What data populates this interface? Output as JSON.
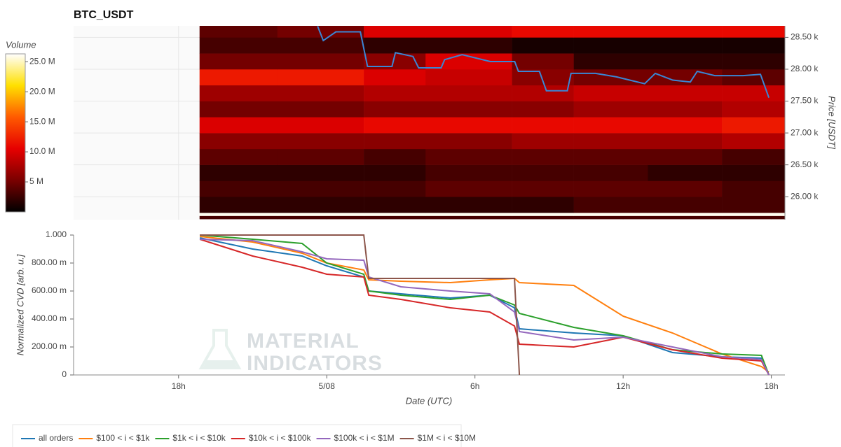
{
  "chart_data": [
    {
      "type": "heatmap",
      "title": "BTC_USDT",
      "ylabel": "Price [USDT]",
      "xlim": [
        -10.25,
        18.55
      ],
      "ylim": [
        25640,
        28680
      ],
      "yticks": [
        {
          "value": 26000,
          "label": "26.00 k"
        },
        {
          "value": 26500,
          "label": "26.50 k"
        },
        {
          "value": 27000,
          "label": "27.00 k"
        },
        {
          "value": 27500,
          "label": "27.50 k"
        },
        {
          "value": 28000,
          "label": "28.00 k"
        },
        {
          "value": 28500,
          "label": "28.50 k"
        }
      ],
      "grid": true,
      "colorbar_title": "Volume",
      "colorscale": [
        "#000000",
        "#7a0000",
        "#e60000",
        "#ff5a00",
        "#ffe000",
        "#ffffff"
      ],
      "clim": [
        0,
        26.3
      ],
      "cticks": [
        {
          "value": 5,
          "label": "5 M"
        },
        {
          "value": 10,
          "label": "10.0 M"
        },
        {
          "value": 15,
          "label": "15.0 M"
        },
        {
          "value": 20,
          "label": "20.0 M"
        },
        {
          "value": 25,
          "label": "25.0 M"
        }
      ],
      "x_bins": [
        -5.15,
        -2,
        1.5,
        4,
        7.5,
        10,
        13,
        16,
        18.55
      ],
      "y_bins": [
        25650,
        25700,
        25750,
        26000,
        26250,
        26500,
        26750,
        27000,
        27250,
        27500,
        27750,
        28000,
        28250,
        28500,
        28680
      ],
      "z": [
        [
          3,
          3,
          3,
          3,
          3,
          3,
          3,
          3
        ],
        [
          26,
          26,
          26,
          26,
          26,
          26,
          26,
          26
        ],
        [
          2,
          2,
          2,
          2,
          2,
          3,
          3,
          3
        ],
        [
          3,
          3,
          3,
          4,
          4,
          4,
          4,
          3
        ],
        [
          2,
          2,
          2,
          3,
          3,
          3,
          2,
          2
        ],
        [
          4,
          4,
          3,
          4,
          4,
          4,
          4,
          3
        ],
        [
          6,
          6,
          6,
          6,
          7,
          7,
          7,
          8
        ],
        [
          10,
          10,
          11,
          11,
          11,
          11,
          11,
          12
        ],
        [
          5,
          5,
          6,
          6,
          6,
          7,
          7,
          8
        ],
        [
          7,
          7,
          8,
          8,
          8,
          9,
          9,
          9
        ],
        [
          12,
          12,
          10,
          9,
          6,
          5,
          5,
          4
        ],
        [
          5,
          5,
          6,
          10,
          5,
          2,
          2,
          2
        ],
        [
          3,
          3,
          2,
          2,
          1,
          1,
          1,
          1
        ],
        [
          4,
          5,
          10,
          10,
          11,
          11,
          11,
          11
        ]
      ],
      "series": [
        {
          "name": "Price",
          "color": "#3a86d4",
          "x": [
            -0.37,
            -0.14,
            0.37,
            1.36,
            1.65,
            2.64,
            2.78,
            3.49,
            3.72,
            4.63,
            4.77,
            5.48,
            6.62,
            7.61,
            7.76,
            8.61,
            8.89,
            9.74,
            9.89,
            10.88,
            11.73,
            12.87,
            13.3,
            14.01,
            14.72,
            15.0,
            15.71,
            16.85,
            17.56,
            17.9
          ],
          "values": [
            28674,
            28450,
            28587,
            28587,
            28043,
            28043,
            28260,
            28200,
            28022,
            28022,
            28150,
            28228,
            28120,
            28120,
            27967,
            27967,
            27663,
            27663,
            27935,
            27935,
            27880,
            27772,
            27935,
            27830,
            27800,
            27967,
            27900,
            27900,
            27920,
            27554
          ]
        }
      ]
    },
    {
      "type": "line",
      "ylabel": "Normalized CVD [arb. u.]",
      "xlabel": "Date (UTC)",
      "xlim": [
        -10.25,
        18.55
      ],
      "ylim": [
        0,
        1
      ],
      "xticks": [
        {
          "value": -6,
          "label": "18h"
        },
        {
          "value": 0,
          "label": "5/08"
        },
        {
          "value": 6,
          "label": "6h"
        },
        {
          "value": 12,
          "label": "12h"
        },
        {
          "value": 18,
          "label": "18h"
        }
      ],
      "yticks": [
        0,
        {
          "value": 0.2,
          "label": "200.00 m"
        },
        {
          "value": 0.4,
          "label": "400.00 m"
        },
        {
          "value": 0.6,
          "label": "600.00 m"
        },
        {
          "value": 0.8,
          "label": "800.00 m"
        },
        {
          "value": 1,
          "label": "1.000"
        }
      ],
      "legend": "bottom",
      "watermark": [
        "MATERIAL",
        "INDICATORS"
      ],
      "x": [
        -5.14,
        -3,
        -1,
        0,
        1.5,
        1.7,
        3,
        5,
        6.6,
        7.6,
        7.8,
        10,
        12,
        14,
        16,
        17.6,
        17.9
      ],
      "series": [
        {
          "name": "all orders",
          "color": "#1f77b4",
          "values": [
            0.98,
            0.9,
            0.85,
            0.78,
            0.7,
            0.6,
            0.58,
            0.55,
            0.57,
            0.48,
            0.33,
            0.3,
            0.28,
            0.16,
            0.13,
            0.12,
            0.0
          ]
        },
        {
          "name": "$100 < i < $1k",
          "color": "#ff7f0e",
          "values": [
            0.99,
            0.95,
            0.87,
            0.8,
            0.75,
            0.68,
            0.67,
            0.66,
            0.68,
            0.69,
            0.66,
            0.64,
            0.42,
            0.3,
            0.15,
            0.06,
            0.02
          ]
        },
        {
          "name": "$1k < i < $10k",
          "color": "#2ca02c",
          "values": [
            1.0,
            0.97,
            0.94,
            0.8,
            0.72,
            0.6,
            0.57,
            0.54,
            0.57,
            0.5,
            0.44,
            0.34,
            0.28,
            0.18,
            0.15,
            0.14,
            0.0
          ]
        },
        {
          "name": "$10k < i < $100k",
          "color": "#d62728",
          "values": [
            0.97,
            0.85,
            0.77,
            0.72,
            0.7,
            0.57,
            0.54,
            0.48,
            0.45,
            0.35,
            0.22,
            0.2,
            0.27,
            0.18,
            0.12,
            0.1,
            0.0
          ]
        },
        {
          "name": "$100k < i < $1M",
          "color": "#9467bd",
          "values": [
            0.97,
            0.96,
            0.88,
            0.83,
            0.82,
            0.7,
            0.63,
            0.6,
            0.58,
            0.45,
            0.31,
            0.25,
            0.27,
            0.2,
            0.13,
            0.11,
            0.0
          ]
        },
        {
          "name": "$1M < i < $10M",
          "color": "#8c564b",
          "values": [
            1.0,
            1.0,
            1.0,
            1.0,
            1.0,
            0.69,
            0.69,
            0.69,
            0.69,
            0.69,
            0.0,
            null,
            null,
            null,
            null,
            null,
            null
          ]
        }
      ]
    }
  ]
}
